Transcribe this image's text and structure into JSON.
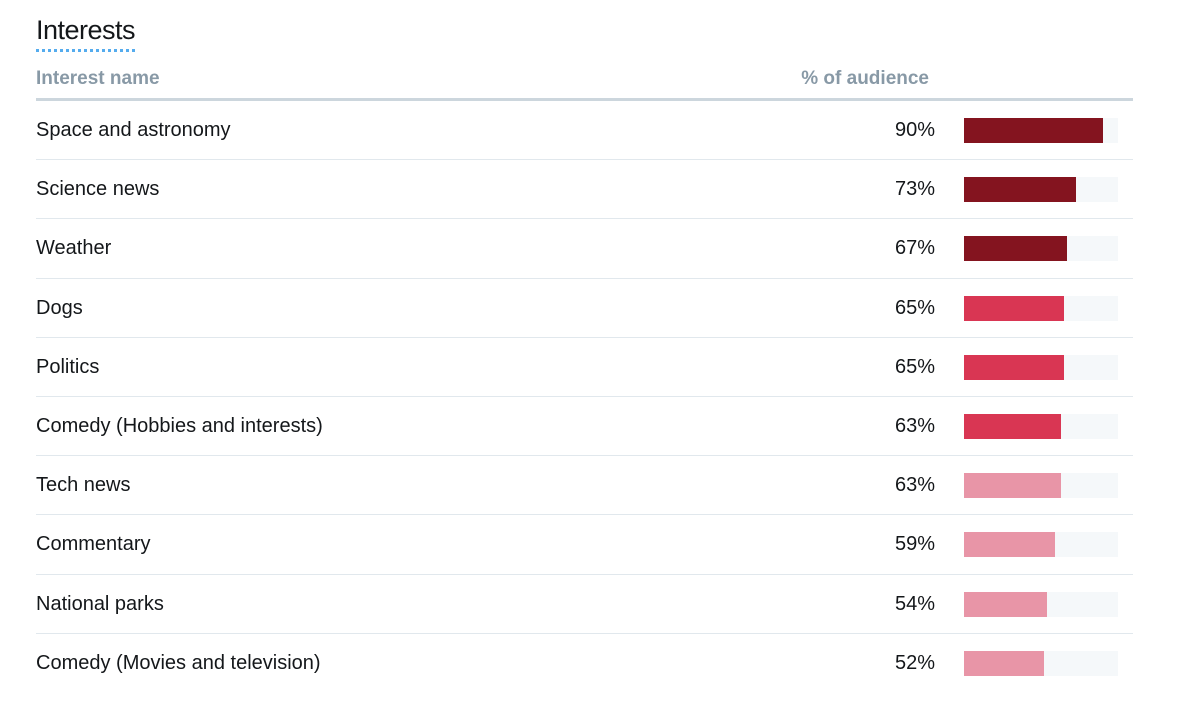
{
  "title": "Interests",
  "header": {
    "name_label": "Interest name",
    "pct_label": "% of audience"
  },
  "colors": {
    "high": "#84141f",
    "mid": "#d93653",
    "low": "#e895a7",
    "track": "#f5f8fa"
  },
  "chart_data": {
    "type": "bar",
    "title": "Interests",
    "categories": [
      "Space and astronomy",
      "Science news",
      "Weather",
      "Dogs",
      "Politics",
      "Comedy (Hobbies and interests)",
      "Tech news",
      "Commentary",
      "National parks",
      "Comedy (Movies and television)"
    ],
    "values": [
      90,
      73,
      67,
      65,
      65,
      63,
      63,
      59,
      54,
      52
    ],
    "value_labels": [
      "90%",
      "73%",
      "67%",
      "65%",
      "65%",
      "63%",
      "63%",
      "59%",
      "54%",
      "52%"
    ],
    "tiers": [
      "high",
      "high",
      "high",
      "mid",
      "mid",
      "mid",
      "low",
      "low",
      "low",
      "low"
    ],
    "xlim": [
      0,
      100
    ],
    "orientation": "horizontal"
  }
}
